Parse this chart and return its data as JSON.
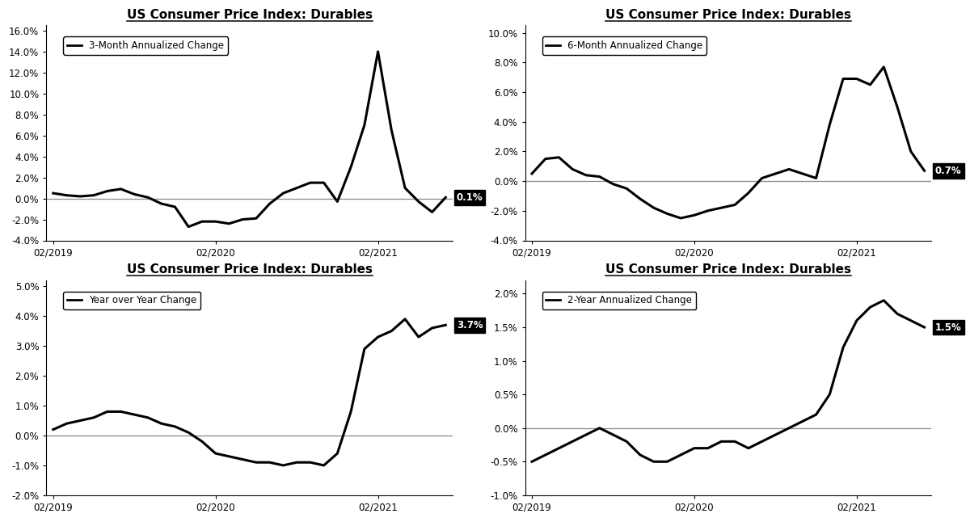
{
  "title": "US Consumer Price Index: Durables",
  "bg": "#ffffff",
  "line_color": "#000000",
  "zero_line_color": "#888888",
  "panels": [
    {
      "legend": "3-Month Annualized Change",
      "end_label": "0.1%",
      "ylim": [
        -0.04,
        0.165
      ],
      "yticks": [
        -0.04,
        -0.02,
        0.0,
        0.02,
        0.04,
        0.06,
        0.08,
        0.1,
        0.12,
        0.14,
        0.16
      ],
      "ytick_labels": [
        "-4.0%",
        "-2.0%",
        "0.0%",
        "2.0%",
        "4.0%",
        "6.0%",
        "8.0%",
        "10.0%",
        "12.0%",
        "14.0%",
        "16.0%"
      ],
      "y": [
        0.005,
        0.003,
        0.002,
        0.003,
        0.007,
        0.009,
        0.004,
        0.001,
        -0.005,
        -0.008,
        -0.027,
        -0.022,
        -0.022,
        -0.024,
        -0.02,
        -0.019,
        -0.005,
        0.005,
        0.01,
        0.015,
        0.015,
        -0.003,
        0.03,
        0.07,
        0.14,
        0.065,
        0.01,
        -0.003,
        -0.013,
        0.001
      ]
    },
    {
      "legend": "6-Month Annualized Change",
      "end_label": "0.7%",
      "ylim": [
        -0.04,
        0.105
      ],
      "yticks": [
        -0.04,
        -0.02,
        0.0,
        0.02,
        0.04,
        0.06,
        0.08,
        0.1
      ],
      "ytick_labels": [
        "-4.0%",
        "-2.0%",
        "0.0%",
        "2.0%",
        "4.0%",
        "6.0%",
        "8.0%",
        "10.0%"
      ],
      "y": [
        0.005,
        0.015,
        0.016,
        0.008,
        0.004,
        0.003,
        -0.002,
        -0.005,
        -0.012,
        -0.018,
        -0.022,
        -0.025,
        -0.023,
        -0.02,
        -0.018,
        -0.016,
        -0.008,
        0.002,
        0.005,
        0.008,
        0.005,
        0.002,
        0.038,
        0.069,
        0.069,
        0.065,
        0.077,
        0.05,
        0.02,
        0.007
      ]
    },
    {
      "legend": "Year over Year Change",
      "end_label": "3.7%",
      "ylim": [
        -0.02,
        0.052
      ],
      "yticks": [
        -0.02,
        -0.01,
        0.0,
        0.01,
        0.02,
        0.03,
        0.04,
        0.05
      ],
      "ytick_labels": [
        "-2.0%",
        "-1.0%",
        "0.0%",
        "1.0%",
        "2.0%",
        "3.0%",
        "4.0%",
        "5.0%"
      ],
      "y": [
        0.002,
        0.004,
        0.005,
        0.006,
        0.008,
        0.008,
        0.007,
        0.006,
        0.004,
        0.003,
        0.001,
        -0.002,
        -0.006,
        -0.007,
        -0.008,
        -0.009,
        -0.009,
        -0.01,
        -0.009,
        -0.009,
        -0.01,
        -0.006,
        0.008,
        0.029,
        0.033,
        0.035,
        0.039,
        0.033,
        0.036,
        0.037
      ]
    },
    {
      "legend": "2-Year Annualized Change",
      "end_label": "1.5%",
      "ylim": [
        -0.01,
        0.022
      ],
      "yticks": [
        -0.01,
        -0.005,
        0.0,
        0.005,
        0.01,
        0.015,
        0.02
      ],
      "ytick_labels": [
        "-1.0%",
        "-0.5%",
        "0.0%",
        "0.5%",
        "1.0%",
        "1.5%",
        "2.0%"
      ],
      "y": [
        -0.005,
        -0.004,
        -0.003,
        -0.002,
        -0.001,
        0.0,
        -0.001,
        -0.002,
        -0.004,
        -0.005,
        -0.005,
        -0.004,
        -0.003,
        -0.003,
        -0.002,
        -0.002,
        -0.003,
        -0.002,
        -0.001,
        0.0,
        0.001,
        0.002,
        0.005,
        0.012,
        0.016,
        0.018,
        0.019,
        0.017,
        0.016,
        0.015
      ]
    }
  ],
  "n_points": 30,
  "xtick_positions": [
    0,
    12,
    24
  ],
  "xtick_labels": [
    "02/2019",
    "02/2020",
    "02/2021"
  ]
}
